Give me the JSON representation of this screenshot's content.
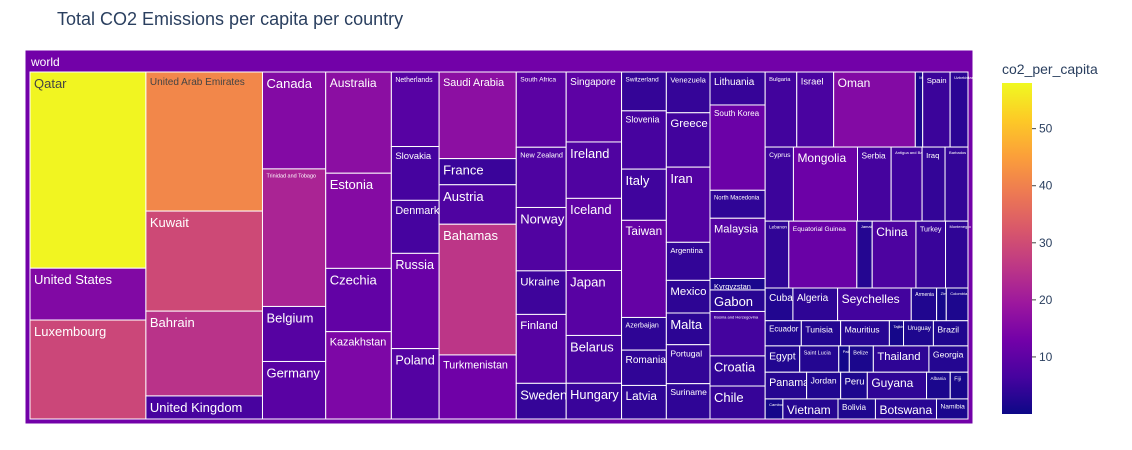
{
  "chart_data": {
    "type": "treemap",
    "title": "Total CO2 Emissions per capita per country",
    "root": "world",
    "colorbar": {
      "title": "co2_per_capita",
      "range": [
        0,
        58
      ],
      "ticks": [
        10,
        20,
        30,
        40,
        50
      ],
      "colorscale": [
        "#0d0887",
        "#46039f",
        "#7201a8",
        "#9c179e",
        "#bd3786",
        "#d8576b",
        "#ed7953",
        "#fb9f3a",
        "#fdca26",
        "#f0f921"
      ]
    },
    "columns": [
      {
        "items": [
          {
            "name": "Qatar",
            "value": 57.5
          },
          {
            "name": "United States",
            "value": 15.2
          },
          {
            "name": "Luxembourg",
            "value": 29.0
          }
        ]
      },
      {
        "items": [
          {
            "name": "United Arab Emirates",
            "value": 41.0
          },
          {
            "name": "Kuwait",
            "value": 29.5
          },
          {
            "name": "Bahrain",
            "value": 25.0
          },
          {
            "name": "United Kingdom",
            "value": 6.8
          }
        ]
      },
      {
        "items": [
          {
            "name": "Canada",
            "value": 15.5
          },
          {
            "name": "Trinidad and Tobago",
            "value": 22.0
          },
          {
            "name": "Belgium",
            "value": 8.8
          },
          {
            "name": "Germany",
            "value": 9.2
          }
        ]
      },
      {
        "items": [
          {
            "name": "Australia",
            "value": 16.8
          },
          {
            "name": "Estonia",
            "value": 15.8
          },
          {
            "name": "Czechia",
            "value": 10.5
          },
          {
            "name": "Kazakhstan",
            "value": 14.5
          }
        ]
      },
      {
        "items": [
          {
            "name": "Netherlands",
            "value": 9.0
          },
          {
            "name": "Slovakia",
            "value": 6.5
          },
          {
            "name": "Denmark",
            "value": 6.4
          },
          {
            "name": "Russia",
            "value": 11.5
          },
          {
            "name": "Poland",
            "value": 8.5
          }
        ]
      },
      {
        "items": [
          {
            "name": "Saudi Arabia",
            "value": 16.9
          },
          {
            "name": "France",
            "value": 5.1
          },
          {
            "name": "Austria",
            "value": 7.7
          },
          {
            "name": "Bahamas",
            "value": 25.5
          },
          {
            "name": "Turkmenistan",
            "value": 12.5
          }
        ]
      },
      {
        "items": [
          {
            "name": "South Africa",
            "value": 9.5
          },
          {
            "name": "New Zealand",
            "value": 7.6
          },
          {
            "name": "Norway",
            "value": 8.0
          },
          {
            "name": "Ukraine",
            "value": 5.5
          },
          {
            "name": "Finland",
            "value": 8.7
          },
          {
            "name": "Sweden",
            "value": 4.5
          }
        ]
      },
      {
        "items": [
          {
            "name": "Singapore",
            "value": 9.8
          },
          {
            "name": "Ireland",
            "value": 7.9
          },
          {
            "name": "Iceland",
            "value": 10.1
          },
          {
            "name": "Japan",
            "value": 9.1
          },
          {
            "name": "Belarus",
            "value": 6.7
          },
          {
            "name": "Hungary",
            "value": 5.0
          }
        ]
      },
      {
        "items": [
          {
            "name": "Switzerland",
            "value": 4.4
          },
          {
            "name": "Slovenia",
            "value": 6.6
          },
          {
            "name": "Italy",
            "value": 5.8
          },
          {
            "name": "Taiwan",
            "value": 11.0
          },
          {
            "name": "Azerbaijan",
            "value": 3.7
          },
          {
            "name": "Romania",
            "value": 4.0
          },
          {
            "name": "Latvia",
            "value": 3.8
          }
        ]
      },
      {
        "items": [
          {
            "name": "Venezuela",
            "value": 4.5
          },
          {
            "name": "Greece",
            "value": 6.0
          },
          {
            "name": "Iran",
            "value": 8.3
          },
          {
            "name": "Argentina",
            "value": 4.2
          },
          {
            "name": "Mexico",
            "value": 3.6
          },
          {
            "name": "Malta",
            "value": 3.5
          },
          {
            "name": "Portugal",
            "value": 4.3
          },
          {
            "name": "Suriname",
            "value": 3.9
          }
        ]
      },
      {
        "items": [
          {
            "name": "Lithuania",
            "value": 4.6
          },
          {
            "name": "South Korea",
            "value": 11.9
          },
          {
            "name": "North Macedonia",
            "value": 3.9
          },
          {
            "name": "Malaysia",
            "value": 8.4
          },
          {
            "name": "Kyrgyzstan",
            "value": 1.6
          },
          {
            "name": "Gabon",
            "value": 3.0
          },
          {
            "name": "Bosnia and Herzegovina",
            "value": 6.2
          },
          {
            "name": "Croatia",
            "value": 4.2
          },
          {
            "name": "Chile",
            "value": 4.6
          }
        ]
      }
    ],
    "small_tiles": [
      {
        "name": "Bulgaria",
        "value": 6.0
      },
      {
        "name": "Israel",
        "value": 7.0
      },
      {
        "name": "Oman",
        "value": 15.5
      },
      {
        "name": "Moldova",
        "value": 1.4
      },
      {
        "name": "Spain",
        "value": 5.2
      },
      {
        "name": "Uzbekistan",
        "value": 3.4
      },
      {
        "name": "Cyprus",
        "value": 5.3
      },
      {
        "name": "Mongolia",
        "value": 12.0
      },
      {
        "name": "Serbia",
        "value": 6.3
      },
      {
        "name": "Antigua and Barbuda",
        "value": 5.8
      },
      {
        "name": "Iraq",
        "value": 4.3
      },
      {
        "name": "Barbados",
        "value": 4.3
      },
      {
        "name": "Lebanon",
        "value": 4.0
      },
      {
        "name": "Equatorial Guinea",
        "value": 11.5
      },
      {
        "name": "Jamaica",
        "value": 2.6
      },
      {
        "name": "China",
        "value": 7.4
      },
      {
        "name": "Turkey",
        "value": 5.0
      },
      {
        "name": "Montenegro",
        "value": 3.8
      },
      {
        "name": "Cuba",
        "value": 2.3
      },
      {
        "name": "Algeria",
        "value": 3.7
      },
      {
        "name": "Seychelles",
        "value": 6.1
      },
      {
        "name": "Armenia",
        "value": 2.1
      },
      {
        "name": "Zimbabwe",
        "value": 0.8
      },
      {
        "name": "Colombia",
        "value": 1.8
      },
      {
        "name": "Ecuador",
        "value": 2.3
      },
      {
        "name": "Tunisia",
        "value": 2.5
      },
      {
        "name": "Mauritius",
        "value": 3.1
      },
      {
        "name": "Tajikistan",
        "value": 0.9
      },
      {
        "name": "Uruguay",
        "value": 1.9
      },
      {
        "name": "Brazil",
        "value": 2.2
      },
      {
        "name": "Egypt",
        "value": 2.3
      },
      {
        "name": "Saint Lucia",
        "value": 2.6
      },
      {
        "name": "Palestine",
        "value": 0.7
      },
      {
        "name": "Belize",
        "value": 1.6
      },
      {
        "name": "Thailand",
        "value": 3.7
      },
      {
        "name": "Georgia",
        "value": 2.6
      },
      {
        "name": "Panama",
        "value": 2.8
      },
      {
        "name": "Jordan",
        "value": 2.3
      },
      {
        "name": "Peru",
        "value": 1.8
      },
      {
        "name": "Guyana",
        "value": 4.0
      },
      {
        "name": "Albania",
        "value": 1.6
      },
      {
        "name": "Fiji",
        "value": 1.2
      },
      {
        "name": "Cambodia",
        "value": 0.9
      },
      {
        "name": "Vietnam",
        "value": 2.8
      },
      {
        "name": "Bolivia",
        "value": 1.9
      },
      {
        "name": "Botswana",
        "value": 3.1
      },
      {
        "name": "Namibia",
        "value": 1.6
      }
    ]
  }
}
